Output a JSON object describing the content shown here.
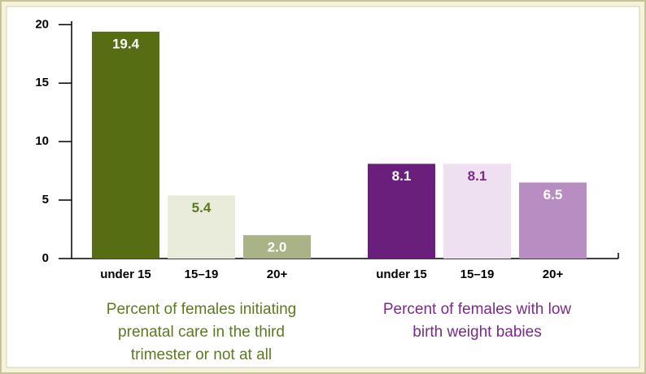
{
  "chart_data": {
    "type": "bar",
    "ylim": [
      0,
      20.3
    ],
    "yticks": [
      0,
      5,
      10,
      15,
      20
    ],
    "groups": [
      {
        "label_lines": [
          "Percent of females initiating",
          "prenatal care in the third",
          "trimester or not at all"
        ],
        "label_color": "#5b7a1f",
        "categories": [
          "under 15",
          "15–19",
          "20+"
        ],
        "values": [
          19.4,
          5.4,
          2.0
        ],
        "value_labels": [
          "19.4",
          "5.4",
          "2.0"
        ],
        "colors": [
          "#566d14",
          "#e9ebdb",
          "#a9b385"
        ],
        "value_label_colors": [
          "#ffffff",
          "#5b7a1f",
          "#ffffff"
        ]
      },
      {
        "label_lines": [
          "Percent of females with low",
          "birth weight babies"
        ],
        "label_color": "#7a2a8b",
        "categories": [
          "under 15",
          "15–19",
          "20+"
        ],
        "values": [
          8.1,
          8.1,
          6.5
        ],
        "value_labels": [
          "8.1",
          "8.1",
          "6.5"
        ],
        "colors": [
          "#6b1f7c",
          "#efe0f1",
          "#b88dc1"
        ],
        "value_label_colors": [
          "#ffffff",
          "#7a2a8b",
          "#ffffff"
        ]
      }
    ]
  }
}
